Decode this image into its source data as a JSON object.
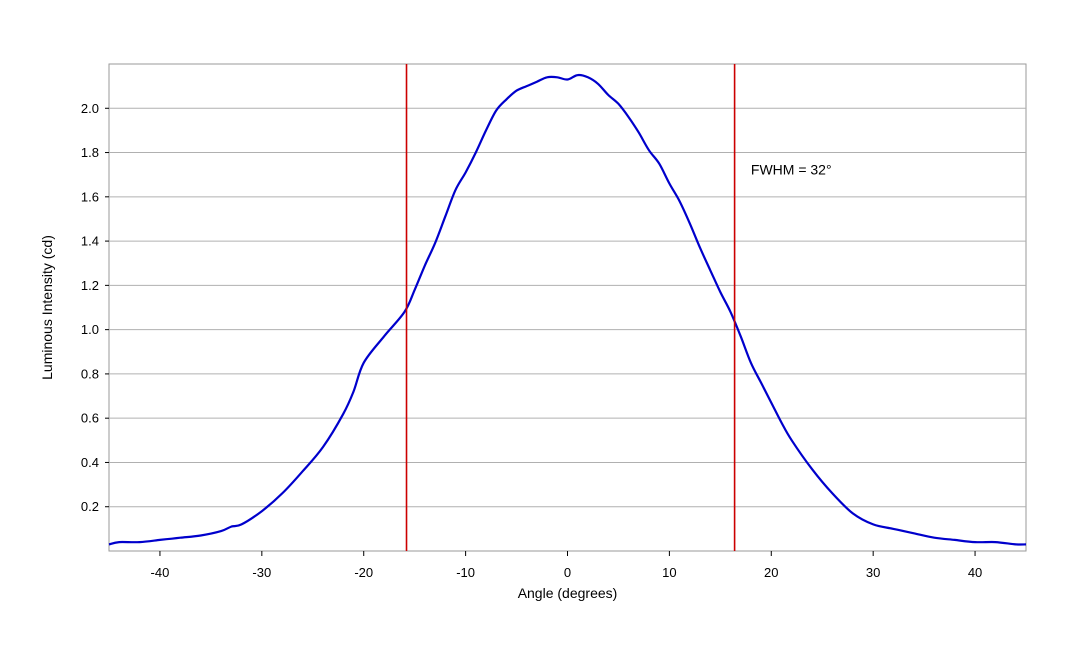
{
  "chart_data": {
    "type": "line",
    "xlabel": "Angle (degrees)",
    "ylabel": "Luminous Intensity (cd)",
    "xlim": [
      -45,
      45
    ],
    "ylim": [
      0,
      2.2
    ],
    "x_ticks": [
      -40,
      -30,
      -20,
      -10,
      0,
      10,
      20,
      30,
      40
    ],
    "y_ticks": [
      0.2,
      0.4,
      0.6,
      0.8,
      1.0,
      1.2,
      1.4,
      1.6,
      1.8,
      2.0
    ],
    "y_tick_labels": [
      "0.2",
      "0.4",
      "0.6",
      "0.8",
      "1.0",
      "1.2",
      "1.4",
      "1.6",
      "1.8",
      "2.0"
    ],
    "grid": "horizontal",
    "series": [
      {
        "color": "#0000cc",
        "x": [
          -45,
          -44,
          -42,
          -40,
          -38,
          -36,
          -34,
          -33,
          -32,
          -30,
          -28,
          -26,
          -24,
          -22,
          -21,
          -20,
          -18,
          -16,
          -15,
          -14,
          -13,
          -12,
          -11,
          -10,
          -9,
          -8,
          -7,
          -6,
          -5,
          -4,
          -3,
          -2,
          -1,
          0,
          1,
          2,
          3,
          4,
          5,
          6,
          7,
          8,
          9,
          10,
          11,
          12,
          13,
          14,
          15,
          16,
          17,
          18,
          19,
          20,
          21,
          22,
          24,
          26,
          28,
          30,
          32,
          34,
          36,
          38,
          40,
          42,
          44,
          45
        ],
        "y": [
          0.03,
          0.04,
          0.04,
          0.05,
          0.06,
          0.07,
          0.09,
          0.11,
          0.12,
          0.18,
          0.26,
          0.36,
          0.47,
          0.62,
          0.72,
          0.85,
          0.97,
          1.08,
          1.18,
          1.29,
          1.39,
          1.51,
          1.63,
          1.71,
          1.8,
          1.9,
          1.99,
          2.04,
          2.08,
          2.1,
          2.12,
          2.14,
          2.14,
          2.13,
          2.15,
          2.14,
          2.11,
          2.06,
          2.02,
          1.96,
          1.89,
          1.81,
          1.75,
          1.66,
          1.58,
          1.48,
          1.37,
          1.27,
          1.17,
          1.08,
          0.97,
          0.85,
          0.76,
          0.67,
          0.58,
          0.5,
          0.37,
          0.26,
          0.17,
          0.12,
          0.1,
          0.08,
          0.06,
          0.05,
          0.04,
          0.04,
          0.03,
          0.03
        ]
      }
    ],
    "markers": [
      {
        "x": -15.8,
        "color": "#cc0000"
      },
      {
        "x": 16.4,
        "color": "#cc0000"
      }
    ],
    "annotations": [
      {
        "text": "FWHM = 32°",
        "x": 18,
        "y": 1.7
      }
    ]
  }
}
